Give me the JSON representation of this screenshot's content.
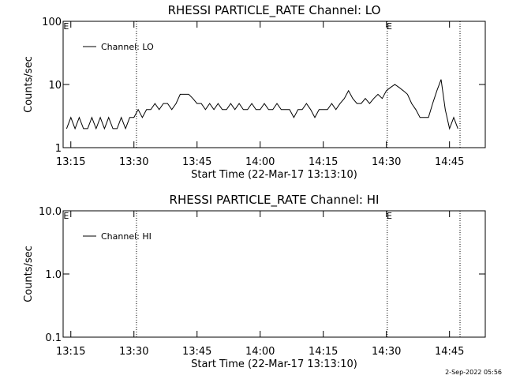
{
  "chart_data": [
    {
      "type": "line",
      "title": "RHESSI PARTICLE_RATE Channel: LO",
      "xlabel": "Start Time (22-Mar-17 13:13:10)",
      "ylabel": "Counts/sec",
      "log_y": true,
      "legend": "upper left",
      "xlim": [
        13.17,
        113.5
      ],
      "ylim": [
        1,
        100
      ],
      "yticks": [
        1,
        10,
        100
      ],
      "xticks": [
        {
          "value": 15,
          "label": "13:15"
        },
        {
          "value": 30,
          "label": "13:30"
        },
        {
          "value": 45,
          "label": "13:45"
        },
        {
          "value": 60,
          "label": "14:00"
        },
        {
          "value": 75,
          "label": "14:15"
        },
        {
          "value": 90,
          "label": "14:30"
        },
        {
          "value": 105,
          "label": "14:45"
        }
      ],
      "vlines": [
        30.6,
        90.2,
        107.5
      ],
      "annotations": [
        {
          "text": "E",
          "x": 13.9
        },
        {
          "text": "E",
          "x": 90.7
        }
      ],
      "x": [
        14,
        15,
        16,
        17,
        18,
        19,
        20,
        21,
        22,
        23,
        24,
        25,
        26,
        27,
        28,
        29,
        30,
        31,
        32,
        33,
        34,
        35,
        36,
        37,
        38,
        39,
        40,
        41,
        42,
        43,
        44,
        45,
        46,
        47,
        48,
        49,
        50,
        51,
        52,
        53,
        54,
        55,
        56,
        57,
        58,
        59,
        60,
        61,
        62,
        63,
        64,
        65,
        66,
        67,
        68,
        69,
        70,
        71,
        72,
        73,
        74,
        75,
        76,
        77,
        78,
        79,
        80,
        81,
        82,
        83,
        84,
        85,
        86,
        87,
        88,
        89,
        90,
        91,
        92,
        93,
        94,
        95,
        96,
        97,
        98,
        99,
        100,
        101,
        102,
        103,
        104,
        105,
        106,
        107
      ],
      "series": [
        {
          "name": "Channel: LO",
          "color": "#000000",
          "values": [
            2,
            3,
            2,
            3,
            2,
            2,
            3,
            2,
            3,
            2,
            3,
            2,
            2,
            3,
            2,
            3,
            3,
            4,
            3,
            4,
            4,
            5,
            4,
            5,
            5,
            4,
            5,
            7,
            7,
            7,
            6,
            5,
            5,
            4,
            5,
            4,
            5,
            4,
            4,
            5,
            4,
            5,
            4,
            4,
            5,
            4,
            4,
            5,
            4,
            4,
            5,
            4,
            4,
            4,
            3,
            4,
            4,
            5,
            4,
            3,
            4,
            4,
            4,
            5,
            4,
            5,
            6,
            8,
            6,
            5,
            5,
            6,
            5,
            6,
            7,
            6,
            8,
            9,
            10,
            9,
            8,
            7,
            5,
            4,
            3,
            3,
            3,
            5,
            8,
            12,
            4,
            2,
            3,
            2
          ]
        }
      ]
    },
    {
      "type": "line",
      "title": "RHESSI PARTICLE_RATE Channel: HI",
      "xlabel": "Start Time (22-Mar-17 13:13:10)",
      "ylabel": "Counts/sec",
      "log_y": true,
      "legend": "upper left",
      "xlim": [
        13.17,
        113.5
      ],
      "ylim": [
        0.1,
        10
      ],
      "yticks": [
        {
          "value": 0.1,
          "label": "0.1"
        },
        {
          "value": 1,
          "label": "1.0"
        },
        {
          "value": 10,
          "label": "10.0"
        }
      ],
      "xticks": [
        {
          "value": 15,
          "label": "13:15"
        },
        {
          "value": 30,
          "label": "13:30"
        },
        {
          "value": 45,
          "label": "13:45"
        },
        {
          "value": 60,
          "label": "14:00"
        },
        {
          "value": 75,
          "label": "14:15"
        },
        {
          "value": 90,
          "label": "14:30"
        },
        {
          "value": 105,
          "label": "14:45"
        }
      ],
      "vlines": [
        30.6,
        90.2,
        107.5
      ],
      "annotations": [
        {
          "text": "E",
          "x": 13.9
        },
        {
          "text": "E",
          "x": 90.7
        }
      ],
      "x": [],
      "series": [
        {
          "name": "Channel: HI",
          "color": "#000000",
          "values": []
        }
      ]
    }
  ],
  "footer": "2-Sep-2022 05:56"
}
